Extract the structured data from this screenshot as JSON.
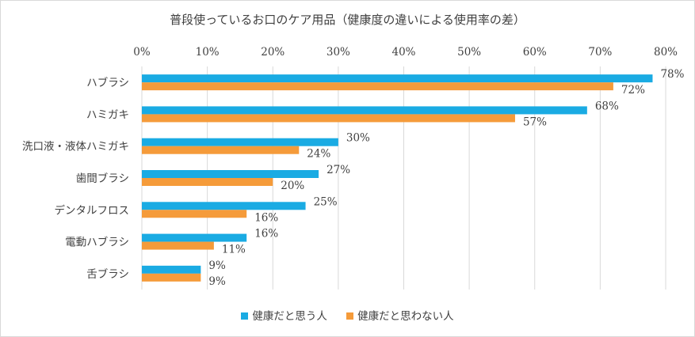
{
  "chart_data": {
    "type": "bar",
    "orientation": "horizontal",
    "title": "普段使っているお口のケア用品（健康度の違いによる使用率の差）",
    "categories": [
      "ハブラシ",
      "ハミガキ",
      "洗口液・液体ハミガキ",
      "歯間ブラシ",
      "デンタルフロス",
      "電動ハブラシ",
      "舌ブラシ"
    ],
    "series": [
      {
        "name": "健康だと思う人",
        "color": "#1AABE3",
        "values": [
          78,
          68,
          30,
          27,
          25,
          16,
          9
        ],
        "labels": [
          "78%",
          "68%",
          "30%",
          "27%",
          "25%",
          "16%",
          "9%"
        ]
      },
      {
        "name": "健康だと思わない人",
        "color": "#F59B3A",
        "values": [
          72,
          57,
          24,
          20,
          16,
          11,
          9
        ],
        "labels": [
          "72%",
          "57%",
          "24%",
          "20%",
          "16%",
          "11%",
          "9%"
        ]
      }
    ],
    "xlim": [
      0,
      80
    ],
    "xticks": [
      0,
      10,
      20,
      30,
      40,
      50,
      60,
      70,
      80
    ],
    "xtick_labels": [
      "0%",
      "10%",
      "20%",
      "30%",
      "40%",
      "50%",
      "60%",
      "70%",
      "80%"
    ],
    "grid": true,
    "legend_position": "bottom"
  }
}
